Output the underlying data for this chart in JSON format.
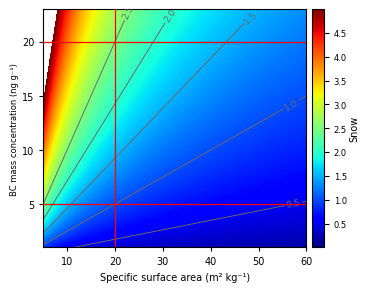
{
  "title": "",
  "xlabel": "Specific surface area (m² kg⁻¹)",
  "ylabel": "BC mass concentration (ng g⁻¹)",
  "xlim": [
    5,
    60
  ],
  "ylim": [
    1,
    23
  ],
  "xticks": [
    10,
    20,
    30,
    40,
    50,
    60
  ],
  "yticks": [
    5,
    10,
    15,
    20
  ],
  "colorbar_label": "Snow",
  "colorbar_ticks": [
    0.5,
    1.0,
    1.5,
    2.0,
    2.5,
    3.0,
    3.5,
    4.0,
    4.5
  ],
  "clim_min": 0.0,
  "clim_max": 5.0,
  "contour_levels": [
    0.5,
    1.0,
    1.5,
    2.0,
    2.5
  ],
  "red_hlines": [
    5,
    20
  ],
  "red_vlines": [
    20
  ],
  "cmap": "jet",
  "rf_a": 2.5,
  "rf_b": 0.661,
  "figsize": [
    3.6,
    2.84
  ],
  "dpi": 100
}
